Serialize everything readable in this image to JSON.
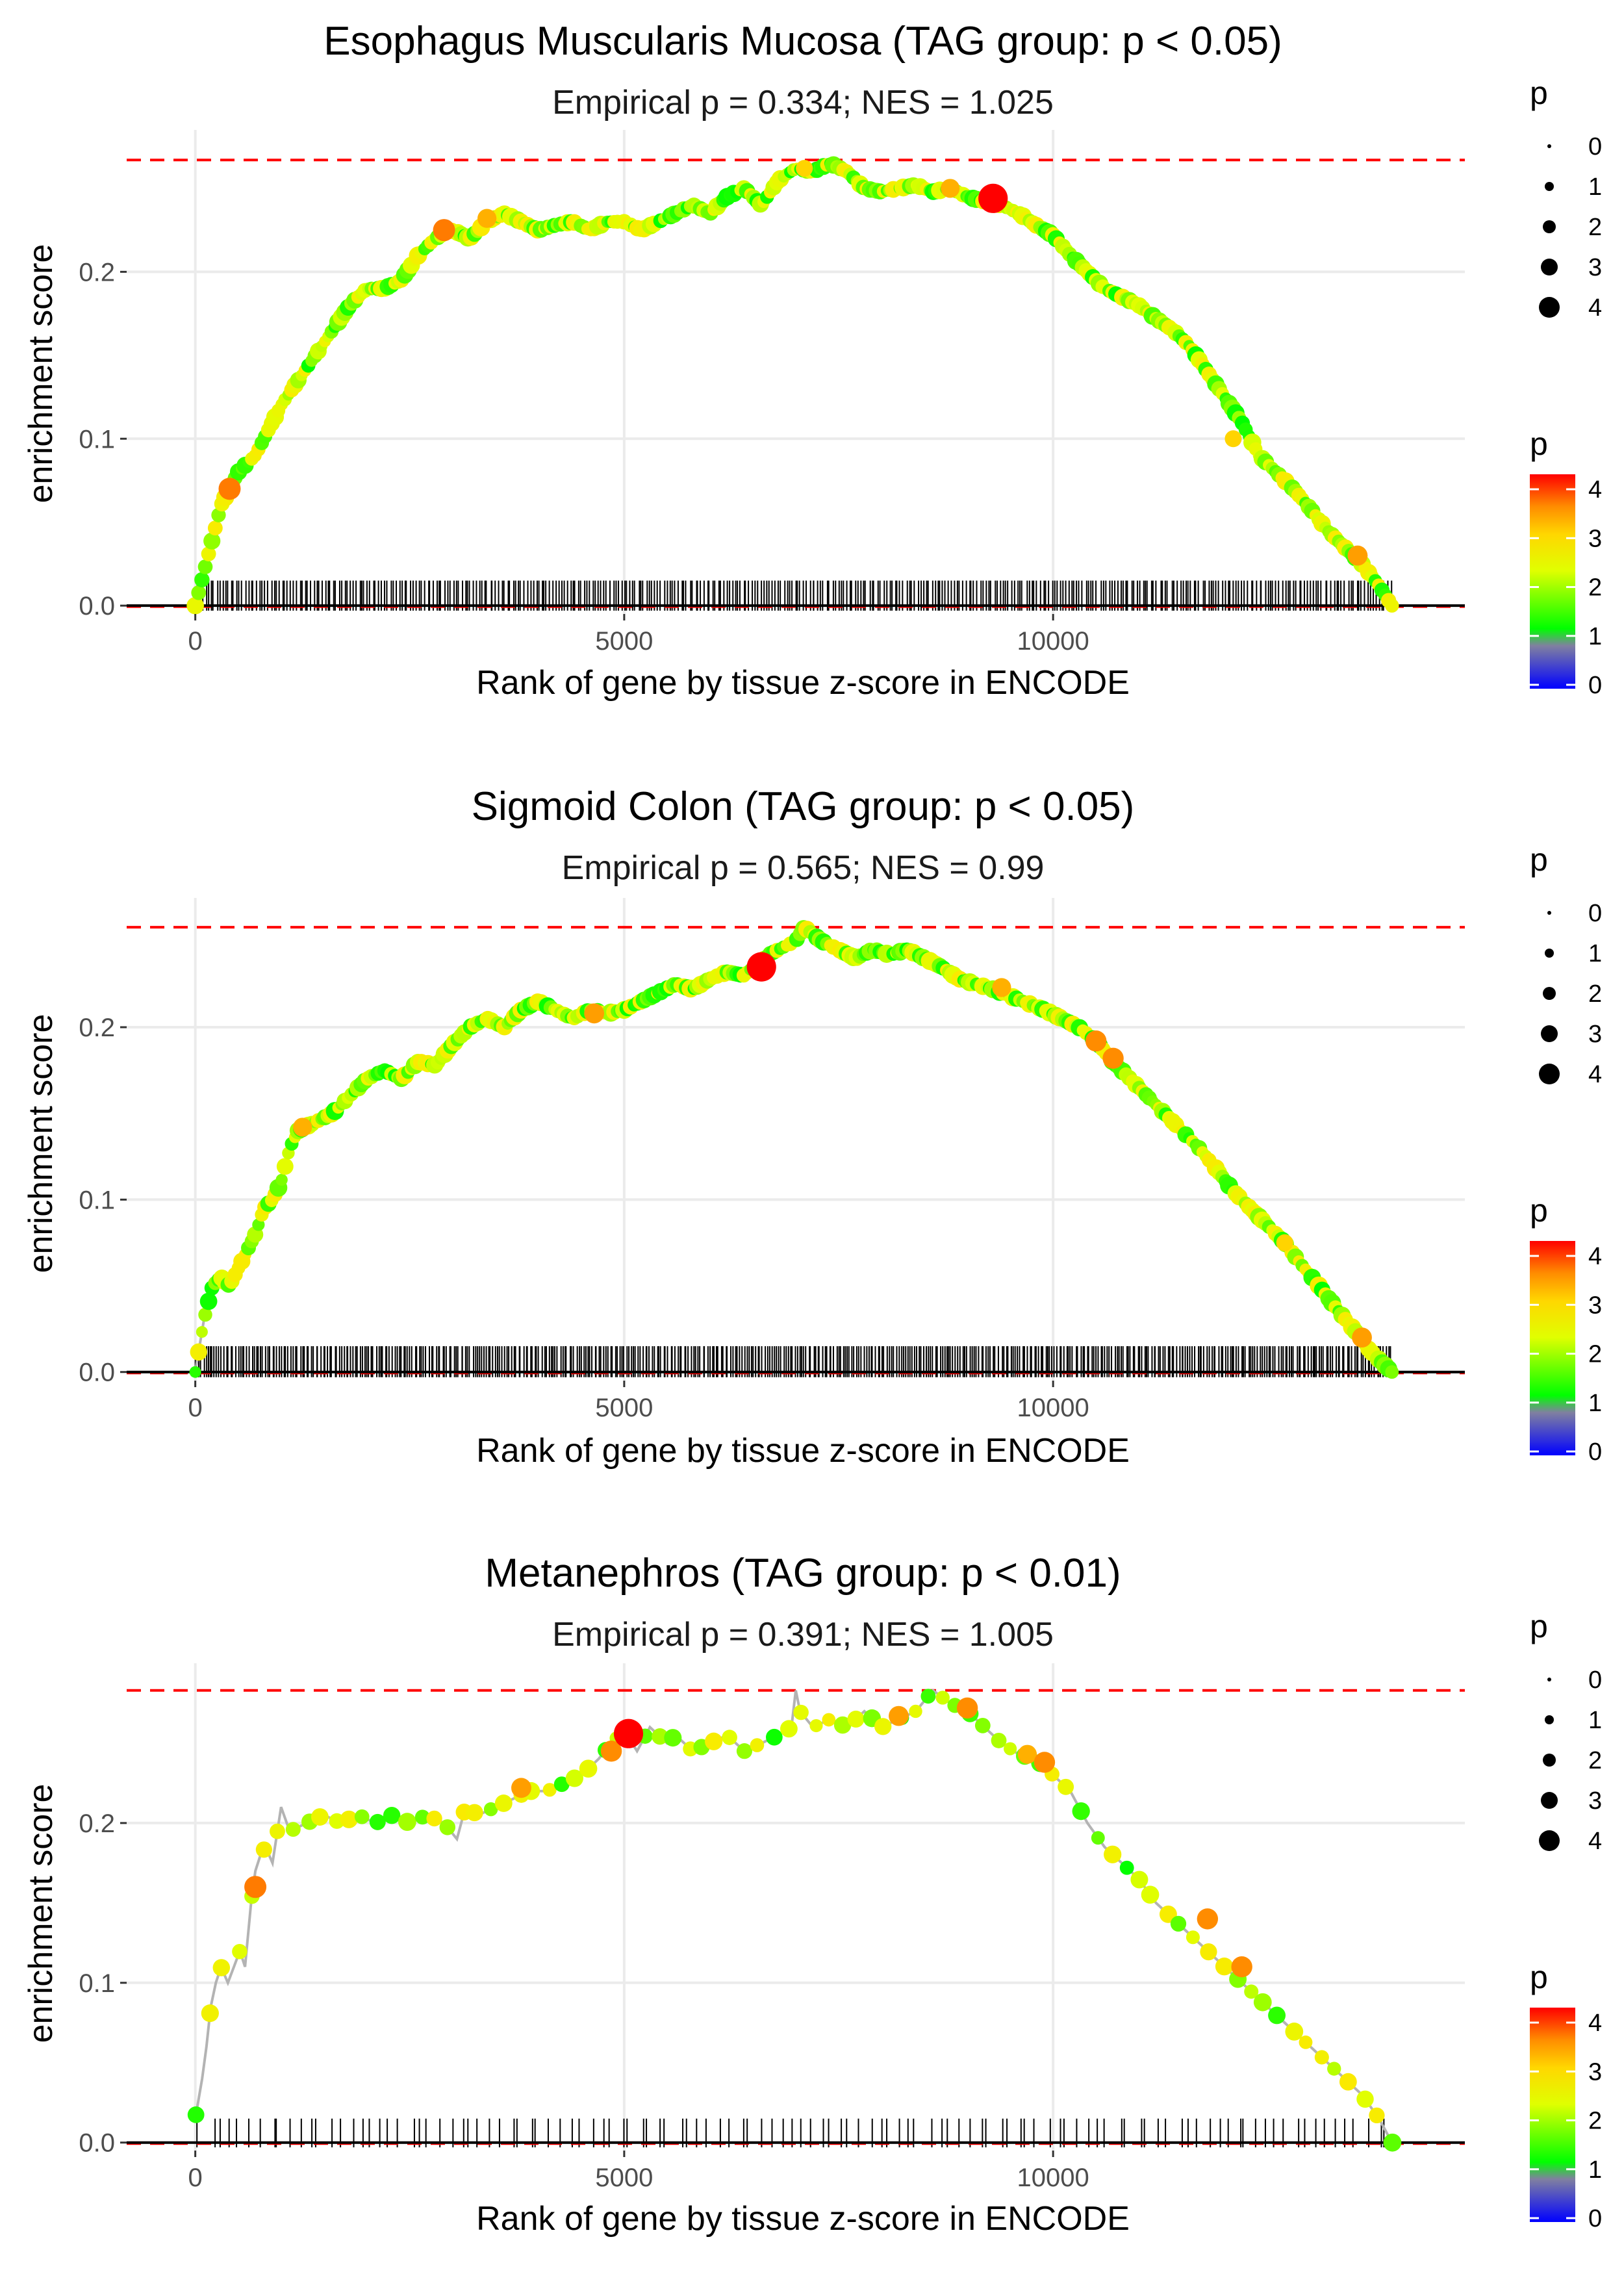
{
  "chart_data": [
    {
      "type": "line",
      "title": "Esophagus Muscularis Mucosa (TAG group: p < 0.05)",
      "subtitle": "Empirical p = 0.334; NES = 1.025",
      "xlabel": "Rank of gene by tissue z-score in ENCODE",
      "ylabel": "enrichment score",
      "xlim": [
        -800,
        14800
      ],
      "ylim": [
        -0.005,
        0.285
      ],
      "x_ticks": [
        0,
        5000,
        10000
      ],
      "x_tick_labels": [
        "0",
        "5000",
        "10000"
      ],
      "y_ticks": [
        0.0,
        0.1,
        0.2
      ],
      "y_tick_labels": [
        "0.0",
        "0.1",
        "0.2"
      ],
      "max_es_line": 0.267,
      "min_es_line": 0.0,
      "point_density": "dense",
      "rug_count": 420,
      "series": [
        {
          "name": "running enrichment score",
          "x": [
            0,
            100,
            200,
            300,
            400,
            500,
            600,
            700,
            800,
            900,
            1000,
            1200,
            1400,
            1600,
            1800,
            2000,
            2200,
            2400,
            2600,
            2800,
            3000,
            3200,
            3400,
            3600,
            3800,
            4000,
            4200,
            4400,
            4600,
            4800,
            5000,
            5200,
            5400,
            5600,
            5800,
            6000,
            6200,
            6400,
            6600,
            6800,
            7000,
            7200,
            7400,
            7600,
            7800,
            8000,
            8200,
            8400,
            8600,
            8800,
            9000,
            9200,
            9400,
            9600,
            9800,
            10000,
            10200,
            10400,
            10600,
            10800,
            11000,
            11200,
            11400,
            11600,
            11800,
            12000,
            12200,
            12400,
            12600,
            12800,
            13000,
            13200,
            13400,
            13600,
            13800,
            13950
          ],
          "y": [
            0.0,
            0.02,
            0.04,
            0.06,
            0.07,
            0.08,
            0.085,
            0.09,
            0.1,
            0.11,
            0.12,
            0.135,
            0.15,
            0.165,
            0.18,
            0.19,
            0.19,
            0.195,
            0.21,
            0.22,
            0.225,
            0.22,
            0.23,
            0.235,
            0.23,
            0.225,
            0.228,
            0.23,
            0.225,
            0.23,
            0.23,
            0.225,
            0.23,
            0.235,
            0.24,
            0.235,
            0.245,
            0.25,
            0.24,
            0.255,
            0.262,
            0.26,
            0.265,
            0.26,
            0.25,
            0.248,
            0.25,
            0.252,
            0.248,
            0.25,
            0.245,
            0.242,
            0.24,
            0.235,
            0.228,
            0.222,
            0.21,
            0.2,
            0.19,
            0.185,
            0.18,
            0.172,
            0.165,
            0.155,
            0.14,
            0.125,
            0.11,
            0.09,
            0.08,
            0.07,
            0.058,
            0.045,
            0.035,
            0.025,
            0.012,
            0.0
          ]
        }
      ],
      "highlight_points": [
        {
          "x": 400,
          "y": 0.07,
          "p": 3.5
        },
        {
          "x": 2900,
          "y": 0.225,
          "p": 3.5
        },
        {
          "x": 3400,
          "y": 0.232,
          "p": 3.2
        },
        {
          "x": 7100,
          "y": 0.262,
          "p": 3.0
        },
        {
          "x": 8800,
          "y": 0.25,
          "p": 3.2
        },
        {
          "x": 9300,
          "y": 0.244,
          "p": 4.2
        },
        {
          "x": 12100,
          "y": 0.1,
          "p": 3.0
        },
        {
          "x": 13550,
          "y": 0.03,
          "p": 3.3
        }
      ]
    },
    {
      "type": "line",
      "title": "Sigmoid Colon (TAG group: p < 0.05)",
      "subtitle": "Empirical p = 0.565; NES = 0.99",
      "xlabel": "Rank of gene by tissue z-score in ENCODE",
      "ylabel": "enrichment score",
      "xlim": [
        -800,
        14800
      ],
      "ylim": [
        -0.005,
        0.275
      ],
      "x_ticks": [
        0,
        5000,
        10000
      ],
      "x_tick_labels": [
        "0",
        "5000",
        "10000"
      ],
      "y_ticks": [
        0.0,
        0.1,
        0.2
      ],
      "y_tick_labels": [
        "0.0",
        "0.1",
        "0.2"
      ],
      "max_es_line": 0.258,
      "min_es_line": 0.0,
      "point_density": "dense",
      "rug_count": 520,
      "series": [
        {
          "name": "running enrichment score",
          "x": [
            0,
            100,
            200,
            300,
            400,
            500,
            600,
            700,
            800,
            900,
            1000,
            1100,
            1200,
            1400,
            1600,
            1800,
            2000,
            2200,
            2400,
            2600,
            2800,
            3000,
            3200,
            3400,
            3600,
            3800,
            4000,
            4200,
            4400,
            4600,
            4800,
            5000,
            5200,
            5400,
            5600,
            5800,
            6000,
            6200,
            6400,
            6600,
            6800,
            7000,
            7100,
            7300,
            7500,
            7700,
            7900,
            8100,
            8300,
            8500,
            8700,
            8900,
            9100,
            9300,
            9500,
            9700,
            9900,
            10100,
            10300,
            10500,
            10700,
            10900,
            11100,
            11300,
            11500,
            11700,
            11900,
            12100,
            12300,
            12500,
            12700,
            12900,
            13100,
            13300,
            13500,
            13700,
            13950
          ],
          "y": [
            0.0,
            0.03,
            0.05,
            0.055,
            0.05,
            0.06,
            0.07,
            0.08,
            0.095,
            0.1,
            0.11,
            0.13,
            0.14,
            0.145,
            0.15,
            0.16,
            0.17,
            0.175,
            0.17,
            0.18,
            0.178,
            0.19,
            0.2,
            0.205,
            0.2,
            0.21,
            0.215,
            0.21,
            0.205,
            0.21,
            0.208,
            0.21,
            0.215,
            0.22,
            0.225,
            0.222,
            0.228,
            0.232,
            0.23,
            0.24,
            0.245,
            0.25,
            0.258,
            0.25,
            0.245,
            0.24,
            0.245,
            0.242,
            0.245,
            0.24,
            0.235,
            0.228,
            0.225,
            0.222,
            0.218,
            0.214,
            0.21,
            0.205,
            0.2,
            0.192,
            0.18,
            0.17,
            0.16,
            0.15,
            0.14,
            0.13,
            0.118,
            0.105,
            0.095,
            0.085,
            0.075,
            0.062,
            0.05,
            0.037,
            0.025,
            0.012,
            0.0
          ]
        }
      ],
      "highlight_points": [
        {
          "x": 1250,
          "y": 0.142,
          "p": 3.2
        },
        {
          "x": 4650,
          "y": 0.208,
          "p": 3.3
        },
        {
          "x": 6600,
          "y": 0.235,
          "p": 4.2
        },
        {
          "x": 9400,
          "y": 0.223,
          "p": 3.2
        },
        {
          "x": 10500,
          "y": 0.192,
          "p": 3.4
        },
        {
          "x": 10700,
          "y": 0.182,
          "p": 3.4
        },
        {
          "x": 12700,
          "y": 0.075,
          "p": 3.0
        },
        {
          "x": 13600,
          "y": 0.02,
          "p": 3.3
        }
      ]
    },
    {
      "type": "line",
      "title": "Metanephros (TAG group: p < 0.01)",
      "subtitle": "Empirical p = 0.391; NES = 1.005",
      "xlabel": "Rank of gene by tissue z-score in ENCODE",
      "ylabel": "enrichment score",
      "xlim": [
        -800,
        14800
      ],
      "ylim": [
        -0.005,
        0.3
      ],
      "x_ticks": [
        0,
        5000,
        10000
      ],
      "x_tick_labels": [
        "0",
        "5000",
        "10000"
      ],
      "y_ticks": [
        0.0,
        0.1,
        0.2
      ],
      "y_tick_labels": [
        "0.0",
        "0.1",
        "0.2"
      ],
      "max_es_line": 0.283,
      "min_es_line": 0.0,
      "point_density": "sparse",
      "rug_count": 120,
      "series": [
        {
          "name": "running enrichment score",
          "x": [
            0,
            80,
            130,
            180,
            240,
            300,
            380,
            450,
            520,
            580,
            650,
            700,
            760,
            820,
            900,
            1000,
            1100,
            1300,
            1500,
            1700,
            1900,
            2100,
            2300,
            2500,
            2700,
            2900,
            3050,
            3150,
            3300,
            3500,
            3700,
            3900,
            4100,
            4300,
            4500,
            4700,
            4850,
            5000,
            5150,
            5300,
            5500,
            5600,
            5800,
            6000,
            6200,
            6400,
            6600,
            6800,
            6950,
            7000,
            7050,
            7200,
            7400,
            7600,
            7800,
            8000,
            8200,
            8400,
            8600,
            8800,
            9000,
            9200,
            9400,
            9600,
            9800,
            10000,
            10200,
            10400,
            10600,
            10800,
            11000,
            11200,
            11400,
            11600,
            11800,
            12000,
            12200,
            12400,
            12600,
            12800,
            13000,
            13200,
            13400,
            13600,
            13800,
            13950
          ],
          "y": [
            0.015,
            0.04,
            0.06,
            0.085,
            0.1,
            0.11,
            0.1,
            0.11,
            0.12,
            0.11,
            0.15,
            0.17,
            0.18,
            0.185,
            0.175,
            0.21,
            0.195,
            0.2,
            0.205,
            0.2,
            0.205,
            0.2,
            0.205,
            0.2,
            0.205,
            0.2,
            0.19,
            0.21,
            0.205,
            0.21,
            0.215,
            0.22,
            0.22,
            0.225,
            0.23,
            0.24,
            0.25,
            0.258,
            0.245,
            0.26,
            0.25,
            0.255,
            0.245,
            0.25,
            0.255,
            0.245,
            0.25,
            0.255,
            0.26,
            0.283,
            0.27,
            0.26,
            0.265,
            0.26,
            0.27,
            0.26,
            0.265,
            0.27,
            0.283,
            0.275,
            0.27,
            0.26,
            0.25,
            0.243,
            0.24,
            0.23,
            0.22,
            0.2,
            0.185,
            0.175,
            0.165,
            0.15,
            0.14,
            0.13,
            0.12,
            0.11,
            0.1,
            0.09,
            0.08,
            0.07,
            0.06,
            0.05,
            0.04,
            0.03,
            0.015,
            0.0
          ]
        }
      ],
      "highlight_points": [
        {
          "x": 700,
          "y": 0.16,
          "p": 3.5
        },
        {
          "x": 3800,
          "y": 0.222,
          "p": 3.3
        },
        {
          "x": 4850,
          "y": 0.245,
          "p": 3.4
        },
        {
          "x": 5050,
          "y": 0.256,
          "p": 4.2
        },
        {
          "x": 8200,
          "y": 0.267,
          "p": 3.3
        },
        {
          "x": 9000,
          "y": 0.272,
          "p": 3.4
        },
        {
          "x": 9700,
          "y": 0.243,
          "p": 3.2
        },
        {
          "x": 9900,
          "y": 0.238,
          "p": 3.4
        },
        {
          "x": 11800,
          "y": 0.14,
          "p": 3.4
        },
        {
          "x": 12200,
          "y": 0.11,
          "p": 3.4
        }
      ]
    }
  ],
  "legends": [
    {
      "size_title": "p",
      "size_entries": [
        "0",
        "1",
        "2",
        "3",
        "4"
      ],
      "color_title": "p",
      "color_ticks": [
        "0",
        "1",
        "2",
        "3",
        "4"
      ]
    },
    {
      "size_title": "p",
      "size_entries": [
        "0",
        "1",
        "2",
        "3",
        "4"
      ],
      "color_title": "p",
      "color_ticks": [
        "0",
        "1",
        "2",
        "3",
        "4"
      ]
    },
    {
      "size_title": "p",
      "size_entries": [
        "0",
        "1",
        "2",
        "3",
        "4"
      ],
      "color_title": "p",
      "color_ticks": [
        "0",
        "1",
        "2",
        "3",
        "4"
      ]
    }
  ],
  "colors": {
    "max_line": "#ff0000",
    "baseline": "#000000",
    "grid": "#ebebeb",
    "curve": "#b3b3b3",
    "gradient": [
      "#0000ff",
      "#808080",
      "#00ff00",
      "#ffff00",
      "#ff8c00",
      "#ff0000"
    ]
  }
}
